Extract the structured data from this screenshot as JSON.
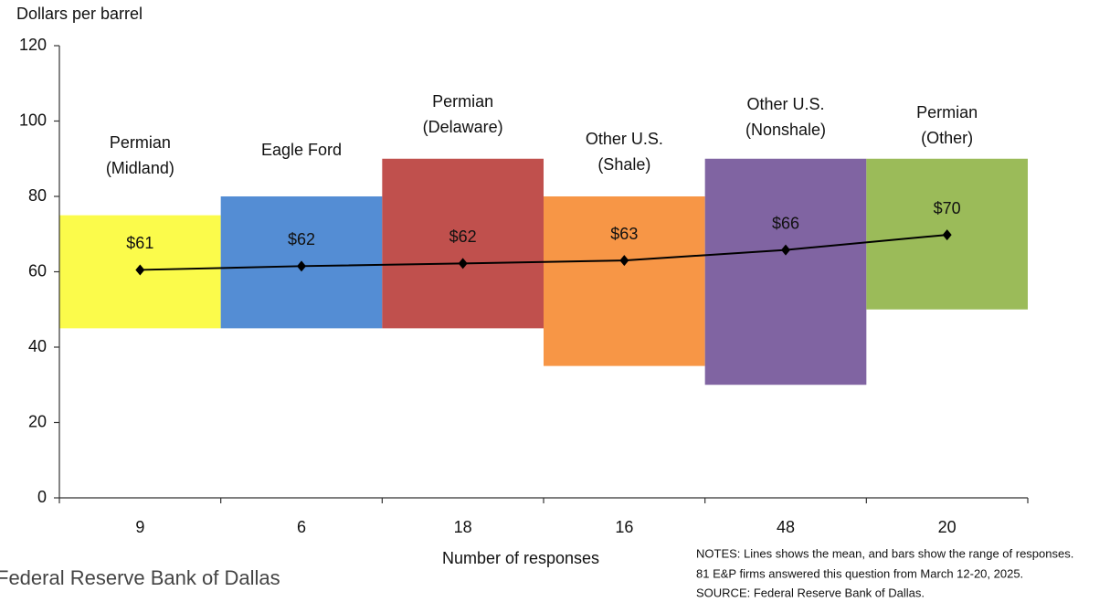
{
  "chart_data": {
    "type": "range_bar",
    "y_axis_label": "Dollars per barrel",
    "x_axis_label": "Number of responses",
    "categories": [
      "9",
      "6",
      "18",
      "16",
      "48",
      "20"
    ],
    "regions": [
      [
        "Permian",
        "(Midland)"
      ],
      [
        "Eagle Ford"
      ],
      [
        "Permian",
        "(Delaware)"
      ],
      [
        "Other U.S.",
        "(Shale)"
      ],
      [
        "Other U.S.",
        "(Nonshale)"
      ],
      [
        "Permian",
        "(Other)"
      ]
    ],
    "ranges": {
      "low": [
        45,
        45,
        45,
        35,
        30,
        50
      ],
      "high": [
        75,
        80,
        90,
        80,
        90,
        90
      ],
      "colors": [
        "#fbfb4b",
        "#548dd4",
        "#c0504d",
        "#f79646",
        "#8064a2",
        "#9bbb59"
      ]
    },
    "mean": {
      "values": [
        60.5,
        61.5,
        62.2,
        63,
        65.8,
        69.8
      ],
      "value_labels": [
        "$61",
        "$62",
        "$62",
        "$63",
        "$66",
        "$70"
      ],
      "color": "#000000"
    },
    "ylim": [
      0,
      120
    ],
    "yticks": [
      0,
      20,
      40,
      60,
      80,
      100,
      120
    ],
    "grid": false,
    "source": "Federal Reserve Bank of Dallas",
    "notes": [
      "NOTES: Lines shows the mean, and bars show the range of responses.",
      "81 E&P firms answered this question from March 12-20, 2025.",
      "SOURCE: Federal Reserve Bank of Dallas."
    ]
  }
}
